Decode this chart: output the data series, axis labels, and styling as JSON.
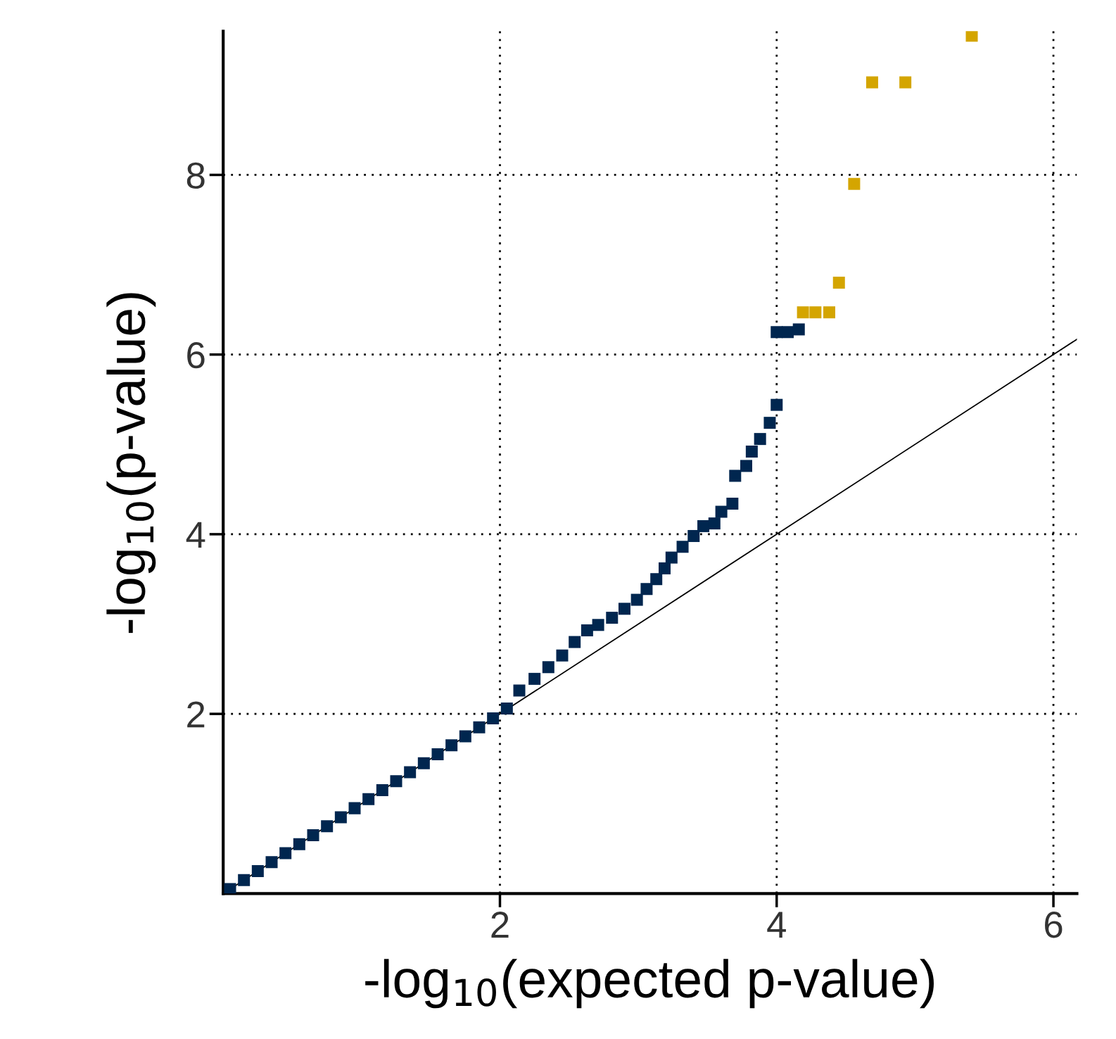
{
  "chart_data": {
    "type": "scatter",
    "xlabel": "-log$_{10}$(expected p-value)",
    "ylabel": "-log$_{10}$(p-value)",
    "xlim": [
      0,
      6.17
    ],
    "ylim": [
      0,
      9.6
    ],
    "xticks": [
      2,
      4,
      6
    ],
    "yticks": [
      2,
      4,
      6,
      8
    ],
    "grid": true,
    "marker": "square",
    "series": [
      {
        "color": "#00264f",
        "x": [
          0.05,
          0.15,
          0.25,
          0.35,
          0.45,
          0.55,
          0.65,
          0.75,
          0.85,
          0.95,
          1.05,
          1.15,
          1.25,
          1.35,
          1.45,
          1.55,
          1.65,
          1.75,
          1.85,
          1.95,
          2.05,
          2.14,
          2.25,
          2.35,
          2.45,
          2.54,
          2.63,
          2.71,
          2.81,
          2.9,
          2.99,
          3.06,
          3.13,
          3.19,
          3.24,
          3.32,
          3.4,
          3.47,
          3.55,
          3.6,
          3.68,
          3.7,
          3.78,
          3.82,
          3.88,
          3.95,
          4.0,
          4.0,
          4.08,
          4.16
        ],
        "values": [
          0.05,
          0.15,
          0.25,
          0.35,
          0.45,
          0.55,
          0.65,
          0.75,
          0.85,
          0.95,
          1.05,
          1.15,
          1.25,
          1.35,
          1.45,
          1.55,
          1.65,
          1.75,
          1.85,
          1.95,
          2.06,
          2.26,
          2.39,
          2.52,
          2.65,
          2.8,
          2.93,
          2.99,
          3.07,
          3.17,
          3.27,
          3.39,
          3.5,
          3.62,
          3.74,
          3.86,
          3.98,
          4.09,
          4.12,
          4.25,
          4.34,
          4.65,
          4.76,
          4.92,
          5.06,
          5.24,
          5.44,
          6.25,
          6.25,
          6.28
        ]
      },
      {
        "color": "#d4a500",
        "x": [
          4.19,
          4.28,
          4.38,
          4.45,
          4.56,
          4.69,
          4.93,
          5.41
        ],
        "values": [
          6.47,
          6.47,
          6.47,
          6.8,
          7.9,
          9.03,
          9.03,
          9.55
        ]
      },
      {
        "type": "line",
        "color": "#000000",
        "marker": "none",
        "x": [
          0,
          6.17
        ],
        "values": [
          0,
          6.17
        ]
      }
    ]
  }
}
